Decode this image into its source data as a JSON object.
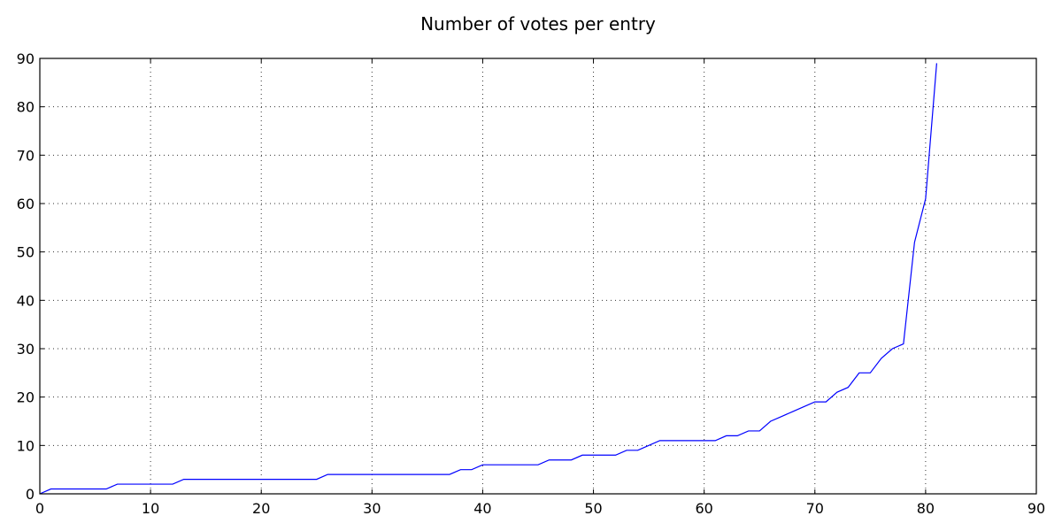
{
  "chart_data": {
    "type": "line",
    "title": "Number of votes per entry",
    "xlabel": "",
    "ylabel": "",
    "xlim": [
      0,
      90
    ],
    "ylim": [
      0,
      90
    ],
    "x_ticks": [
      0,
      10,
      20,
      30,
      40,
      50,
      60,
      70,
      80,
      90
    ],
    "y_ticks": [
      0,
      10,
      20,
      30,
      40,
      50,
      60,
      70,
      80,
      90
    ],
    "grid": true,
    "line_color": "#0000ff",
    "series": [
      {
        "x": [
          0,
          1,
          2,
          3,
          4,
          5,
          6,
          7,
          8,
          9,
          10,
          11,
          12,
          13,
          14,
          15,
          16,
          17,
          18,
          19,
          20,
          21,
          22,
          23,
          24,
          25,
          26,
          27,
          28,
          29,
          30,
          31,
          32,
          33,
          34,
          35,
          36,
          37,
          38,
          39,
          40,
          41,
          42,
          43,
          44,
          45,
          46,
          47,
          48,
          49,
          50,
          51,
          52,
          53,
          54,
          55,
          56,
          57,
          58,
          59,
          60,
          61,
          62,
          63,
          64,
          65,
          66,
          67,
          68,
          69,
          70,
          71,
          72,
          73,
          74,
          75,
          76,
          77,
          78,
          79,
          80,
          81
        ],
        "y": [
          0,
          1,
          1,
          1,
          1,
          1,
          1,
          2,
          2,
          2,
          2,
          2,
          2,
          3,
          3,
          3,
          3,
          3,
          3,
          3,
          3,
          3,
          3,
          3,
          3,
          3,
          4,
          4,
          4,
          4,
          4,
          4,
          4,
          4,
          4,
          4,
          4,
          4,
          5,
          5,
          6,
          6,
          6,
          6,
          6,
          6,
          7,
          7,
          7,
          8,
          8,
          8,
          8,
          9,
          9,
          10,
          11,
          11,
          11,
          11,
          11,
          11,
          12,
          12,
          13,
          13,
          15,
          16,
          17,
          18,
          19,
          19,
          21,
          22,
          25,
          25,
          28,
          30,
          31,
          52,
          61,
          89
        ]
      }
    ]
  }
}
